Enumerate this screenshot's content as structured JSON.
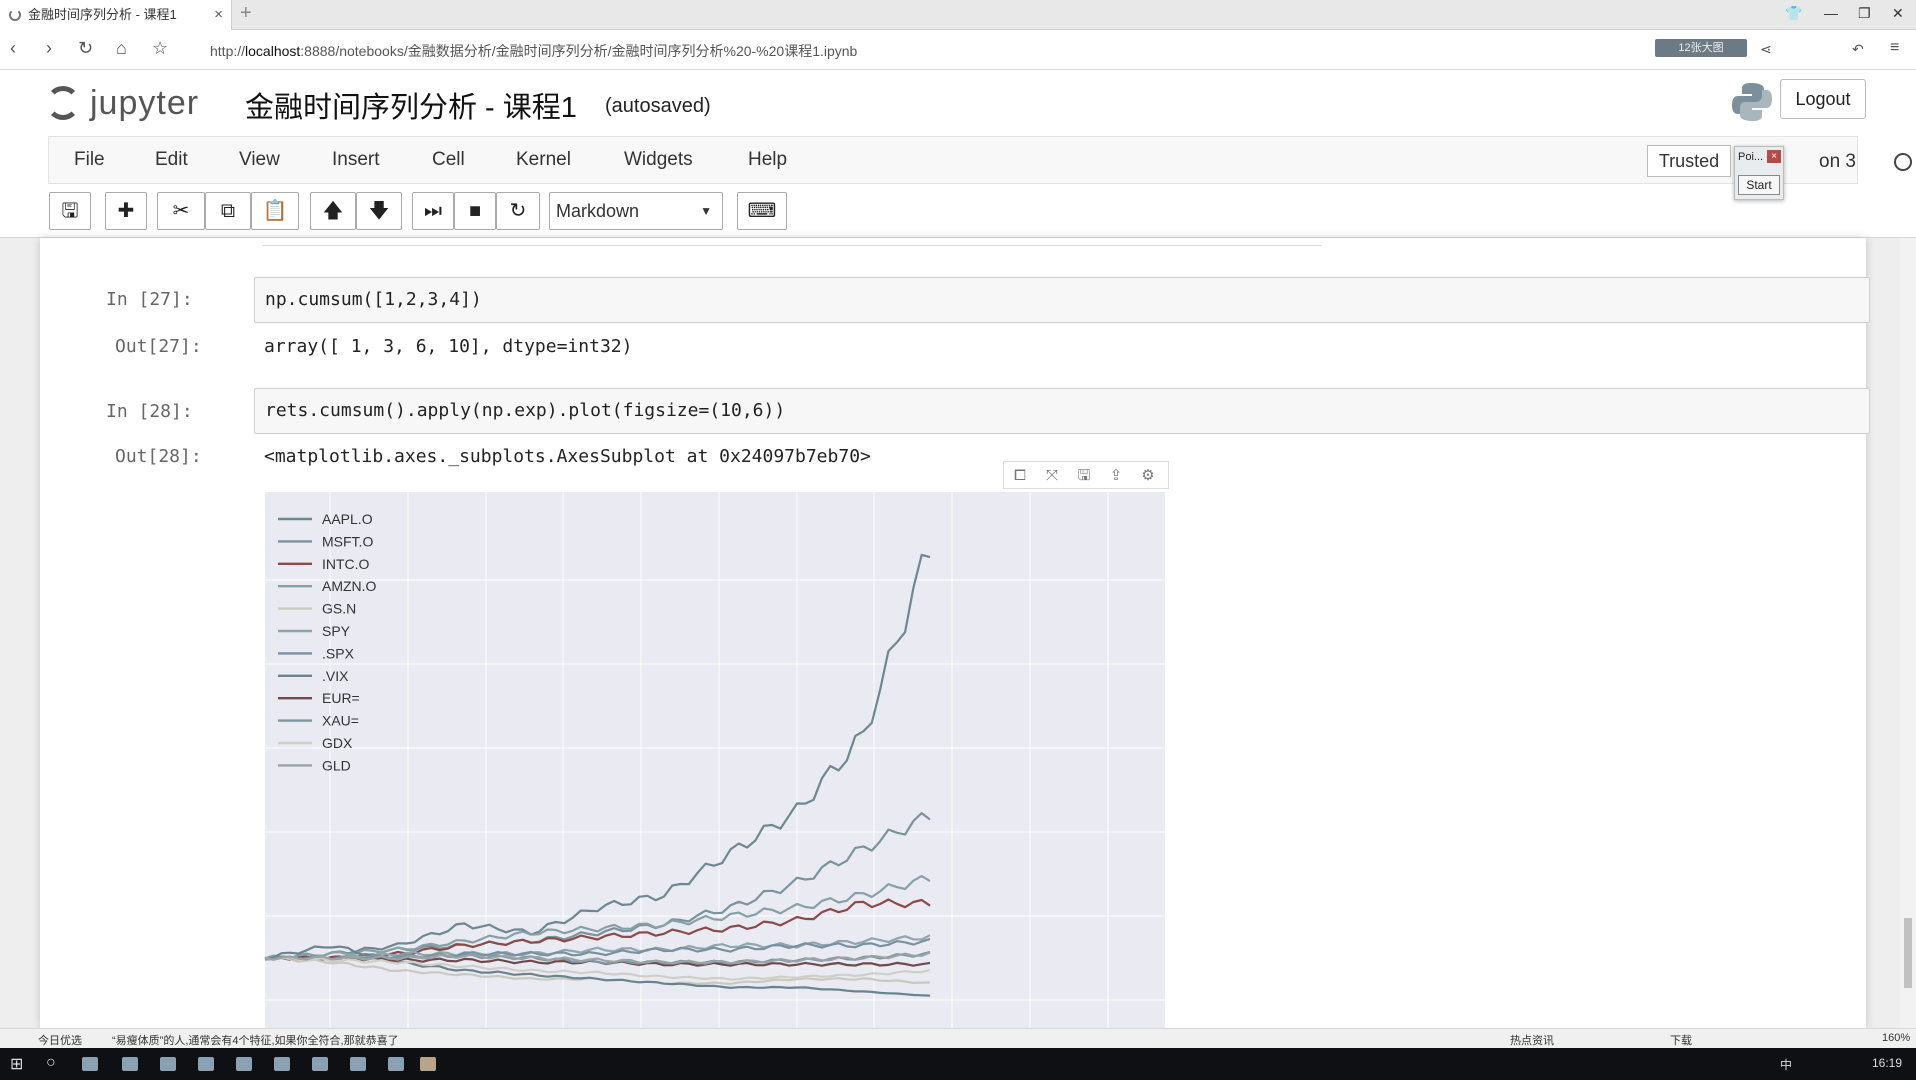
{
  "browser": {
    "tab_title": "金融时间序列分析 - 课程1",
    "tab_close": "×",
    "new_tab": "+",
    "url_prefix": "http://",
    "url_host": "localhost",
    "url_rest": ":8888/notebooks/金融数据分析/金融时间序列分析/金融时间序列分析%20-%20课程1.ipynb",
    "addr_widget": "12张大图"
  },
  "header": {
    "logo_text": "jupyter",
    "notebook_title": "金融时间序列分析 - 课程1",
    "autosave_status": "(autosaved)",
    "logout_label": "Logout"
  },
  "menubar": {
    "items": [
      "File",
      "Edit",
      "View",
      "Insert",
      "Cell",
      "Kernel",
      "Widgets",
      "Help"
    ],
    "trusted_label": "Trusted",
    "kernel_name": "on 3",
    "popup_title": "Poi...",
    "popup_close": "×",
    "popup_start": "Start"
  },
  "toolbar": {
    "cell_type": "Markdown",
    "icons": [
      "save-icon",
      "add-cell-icon",
      "cut-icon",
      "copy-icon",
      "paste-icon",
      "move-up-icon",
      "move-down-icon",
      "run-icon",
      "stop-icon",
      "restart-icon",
      "keyboard-icon"
    ]
  },
  "cells": {
    "c27": {
      "in_prompt": "In  [27]:",
      "code": "np.cumsum([1,2,3,4])",
      "out_prompt": "Out[27]:",
      "output": "array([ 1,  3,  6, 10], dtype=int32)"
    },
    "c28": {
      "in_prompt": "In  [28]:",
      "code": "rets.cumsum().apply(np.exp).plot(figsize=(10,6))",
      "out_prompt": "Out[28]:",
      "output": "<matplotlib.axes._subplots.AxesSubplot at 0x24097b7eb70>"
    }
  },
  "statusbar": {
    "left": "今日优选",
    "headline": "“易瘦体质”的人,通常会有4个特征,如果你全符合,那就恭喜了",
    "hot": "热点资讯",
    "download": "下载",
    "zoom": "160%"
  },
  "taskbar": {
    "time": "16:19",
    "ime": "中"
  },
  "chart_data": {
    "type": "line",
    "title": "",
    "xlabel": "",
    "ylabel": "",
    "ylim": [
      0,
      11.5
    ],
    "yticks": [
      0,
      2,
      4,
      6,
      8,
      10
    ],
    "grid": true,
    "legend_position": "top-left",
    "series": [
      {
        "name": "AAPL.O",
        "color": "#6f8791",
        "values": [
          1.0,
          1.1,
          1.3,
          1.8,
          1.6,
          2.2,
          2.5,
          3.5,
          4.5,
          6.3,
          10.8
        ]
      },
      {
        "name": "MSFT.O",
        "color": "#7b939c",
        "values": [
          1.0,
          1.1,
          1.2,
          1.3,
          1.4,
          1.6,
          1.8,
          2.2,
          2.8,
          3.6,
          4.4
        ]
      },
      {
        "name": "INTC.O",
        "color": "#8b4a4a",
        "values": [
          1.0,
          1.0,
          1.1,
          1.3,
          1.4,
          1.5,
          1.6,
          1.7,
          1.9,
          2.3,
          2.3
        ]
      },
      {
        "name": "AMZN.O",
        "color": "#87a0a8",
        "values": [
          1.0,
          1.1,
          1.2,
          1.4,
          1.6,
          1.7,
          1.8,
          2.0,
          2.2,
          2.5,
          2.9
        ]
      },
      {
        "name": "GS.N",
        "color": "#c9c9c0",
        "values": [
          1.0,
          0.9,
          0.7,
          0.6,
          0.5,
          0.5,
          0.4,
          0.4,
          0.5,
          0.5,
          0.4
        ]
      },
      {
        "name": "SPY",
        "color": "#8fa6ad",
        "values": [
          1.0,
          1.0,
          1.1,
          1.1,
          1.1,
          1.2,
          1.2,
          1.3,
          1.3,
          1.4,
          1.5
        ]
      },
      {
        "name": ".SPX",
        "color": "#7891a0",
        "values": [
          1.0,
          1.0,
          1.0,
          1.1,
          1.1,
          1.1,
          1.2,
          1.2,
          1.3,
          1.3,
          1.4
        ]
      },
      {
        "name": ".VIX",
        "color": "#6a848e",
        "values": [
          1.0,
          1.3,
          0.9,
          0.7,
          0.6,
          0.5,
          0.4,
          0.3,
          0.3,
          0.2,
          0.1
        ]
      },
      {
        "name": "EUR=",
        "color": "#6e4a4e",
        "values": [
          1.0,
          1.0,
          0.95,
          0.95,
          0.9,
          0.9,
          0.85,
          0.85,
          0.85,
          0.85,
          0.85
        ]
      },
      {
        "name": "XAU=",
        "color": "#7d96a0",
        "values": [
          1.0,
          1.0,
          1.05,
          1.05,
          1.0,
          0.9,
          0.9,
          0.9,
          0.95,
          1.0,
          1.1
        ]
      },
      {
        "name": "GDX",
        "color": "#cfcfc8",
        "values": [
          1.0,
          0.95,
          0.9,
          0.8,
          0.7,
          0.65,
          0.55,
          0.5,
          0.55,
          0.6,
          0.7
        ]
      },
      {
        "name": "GLD",
        "color": "#9aa4a8",
        "values": [
          1.0,
          1.0,
          1.0,
          1.05,
          1.0,
          0.95,
          0.9,
          0.9,
          0.95,
          1.0,
          1.1
        ]
      }
    ]
  }
}
